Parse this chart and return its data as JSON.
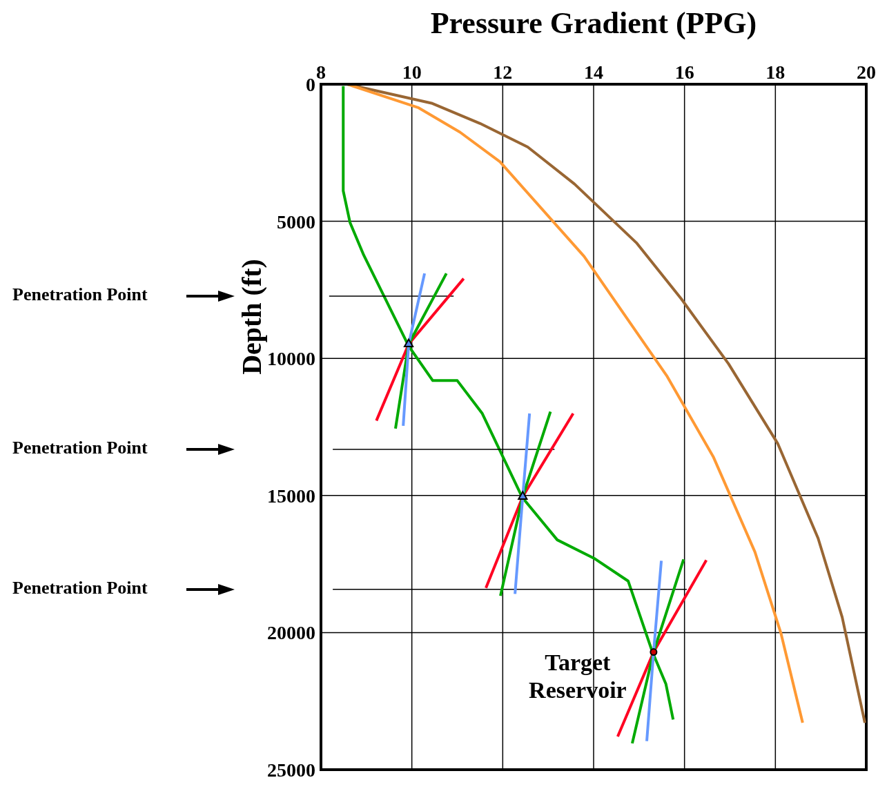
{
  "chart_data": {
    "type": "line",
    "title": "Pressure Gradient (PPG)",
    "ylabel": "Depth (ft)",
    "xlim": [
      8,
      20
    ],
    "xticks": [
      8,
      10,
      12,
      14,
      16,
      18,
      20
    ],
    "ylim": [
      25000,
      0
    ],
    "yticks": [
      0,
      5000,
      10000,
      15000,
      20000,
      25000
    ],
    "grid": true,
    "marker": "none",
    "line_style": "solid",
    "series": [
      {
        "color": "#996633",
        "x": [
          8.58,
          10.45,
          11.5,
          12.55,
          13.58,
          14.94,
          15.93,
          16.97,
          18.05,
          18.94,
          19.47,
          19.97
        ],
        "values": [
          0,
          700,
          1430,
          2290,
          3640,
          5780,
          7830,
          10200,
          13100,
          16560,
          19440,
          23290
        ]
      },
      {
        "color": "#ff9933",
        "x": [
          8.58,
          10.15,
          11.06,
          11.94,
          13.79,
          15.62,
          16.64,
          17.55,
          18.12,
          18.6
        ],
        "values": [
          0,
          860,
          1750,
          2830,
          6280,
          10660,
          13610,
          17060,
          20010,
          23290
        ]
      },
      {
        "color": "#00aa00",
        "x": [
          8.49,
          8.49,
          8.64,
          8.94,
          9.93,
          10.46,
          11.0,
          11.55,
          12.43,
          13.2,
          14.03,
          14.76,
          15.29,
          15.59,
          15.75
        ],
        "values": [
          70,
          3890,
          5050,
          6230,
          9550,
          10810,
          10810,
          12010,
          15070,
          16620,
          17310,
          18120,
          20690,
          21870,
          23170
        ]
      },
      {
        "name": "Penetration Point",
        "color": "#000000",
        "x": [
          8.18,
          10.92
        ],
        "values": [
          7730,
          7730
        ]
      },
      {
        "name": "Penetration Point",
        "color": "#000000",
        "x": [
          8.26,
          13.14
        ],
        "values": [
          13320,
          13320
        ]
      },
      {
        "name": "Penetration Point",
        "color": "#000000",
        "x": [
          8.26,
          16.05
        ],
        "values": [
          18420,
          18420
        ]
      },
      {
        "color": "#ff0022",
        "x": [
          11.14,
          9.93,
          9.22
        ],
        "values": [
          7090,
          9480,
          12270
        ]
      },
      {
        "color": "#00aa00",
        "x": [
          10.76,
          9.93,
          9.64
        ],
        "values": [
          6900,
          9480,
          12560
        ]
      },
      {
        "color": "#6699ff",
        "x": [
          10.28,
          9.93,
          9.81
        ],
        "values": [
          6900,
          9480,
          12460
        ]
      },
      {
        "color": "#ff0022",
        "x": [
          13.55,
          12.44,
          11.63
        ],
        "values": [
          12010,
          15040,
          18370
        ]
      },
      {
        "color": "#00aa00",
        "x": [
          13.05,
          12.44,
          11.95
        ],
        "values": [
          11940,
          15040,
          18660
        ]
      },
      {
        "color": "#6699ff",
        "x": [
          12.59,
          12.44,
          12.27
        ],
        "values": [
          12010,
          15040,
          18590
        ]
      },
      {
        "color": "#ff0022",
        "x": [
          16.48,
          15.32,
          14.53
        ],
        "values": [
          17360,
          20710,
          23790
        ]
      },
      {
        "color": "#00aa00",
        "x": [
          15.98,
          15.32,
          14.85
        ],
        "values": [
          17330,
          20710,
          24040
        ]
      },
      {
        "color": "#6699ff",
        "x": [
          15.49,
          15.32,
          15.17
        ],
        "values": [
          17380,
          20710,
          23960
        ]
      },
      {
        "type": "scatter",
        "marker": "triangle",
        "color": "#5588ee",
        "x": [
          9.93,
          12.44
        ],
        "values": [
          9480,
          15040
        ]
      },
      {
        "type": "scatter",
        "marker": "circle",
        "color": "#cc0000",
        "x": [
          15.32
        ],
        "values": [
          20710
        ]
      }
    ],
    "annotations": [
      {
        "text": "Target Reservoir",
        "x": 15.32,
        "y": 20710
      }
    ]
  }
}
